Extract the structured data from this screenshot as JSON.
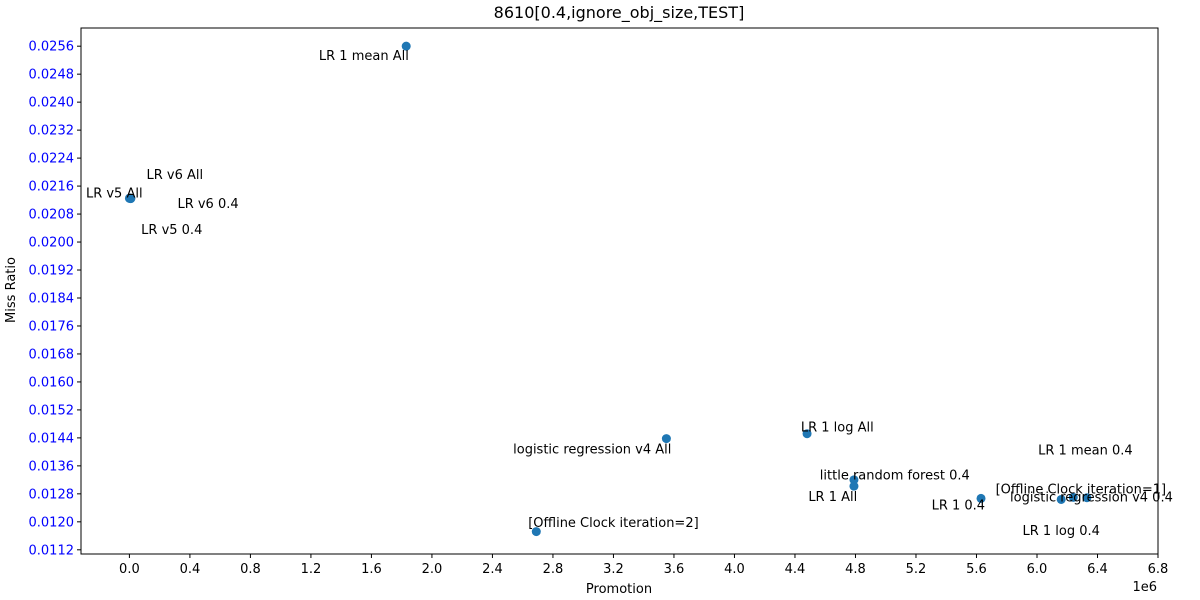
{
  "chart_data": {
    "type": "scatter",
    "title": "8610[0.4,ignore_obj_size,TEST]",
    "xlabel": "Promotion",
    "ylabel": "Miss Ratio",
    "x_offset_label": "1e6",
    "xlim": [
      -0.32,
      6.8
    ],
    "ylim": [
      0.01108,
      0.02612
    ],
    "x_tick_values": [
      0.0,
      0.4,
      0.8,
      1.2,
      1.6,
      2.0,
      2.4,
      2.8,
      3.2,
      3.6,
      4.0,
      4.4,
      4.8,
      5.2,
      5.6,
      6.0,
      6.4,
      6.8
    ],
    "x_tick_labels": [
      "0.0",
      "0.4",
      "0.8",
      "1.2",
      "1.6",
      "2.0",
      "2.4",
      "2.8",
      "3.2",
      "3.6",
      "4.0",
      "4.4",
      "4.8",
      "5.2",
      "5.6",
      "6.0",
      "6.4",
      "6.8"
    ],
    "y_tick_values": [
      0.0112,
      0.012,
      0.0128,
      0.0136,
      0.0144,
      0.0152,
      0.016,
      0.0168,
      0.0176,
      0.0184,
      0.0192,
      0.02,
      0.0208,
      0.0216,
      0.0224,
      0.0232,
      0.024,
      0.0248,
      0.0256
    ],
    "y_tick_labels": [
      "0.0112",
      "0.0120",
      "0.0128",
      "0.0136",
      "0.0144",
      "0.0152",
      "0.0160",
      "0.0168",
      "0.0176",
      "0.0184",
      "0.0192",
      "0.0200",
      "0.0208",
      "0.0216",
      "0.0224",
      "0.0232",
      "0.0240",
      "0.0248",
      "0.0256"
    ],
    "grid": false,
    "colors": {
      "marker": "#1f77b4",
      "y_tick_text": "#0000ff",
      "text": "#000000"
    },
    "points": [
      {
        "x": 1.83,
        "y": 0.0256
      },
      {
        "x": 0.0,
        "y": 0.02125
      },
      {
        "x": 0.005,
        "y": 0.02126
      },
      {
        "x": 0.008,
        "y": 0.02124
      },
      {
        "x": 0.01,
        "y": 0.02125
      },
      {
        "x": 3.55,
        "y": 0.01438
      },
      {
        "x": 4.48,
        "y": 0.01452
      },
      {
        "x": 4.79,
        "y": 0.0132
      },
      {
        "x": 4.79,
        "y": 0.01302
      },
      {
        "x": 5.63,
        "y": 0.01267
      },
      {
        "x": 6.16,
        "y": 0.01264
      },
      {
        "x": 6.24,
        "y": 0.0127
      },
      {
        "x": 6.33,
        "y": 0.01269
      },
      {
        "x": 2.69,
        "y": 0.01172
      }
    ],
    "annotations": [
      {
        "text": "LR 1 mean All",
        "x": 1.55,
        "y": 0.02535
      },
      {
        "text": "LR v6 All",
        "x": 0.3,
        "y": 0.02195
      },
      {
        "text": "LR v5 All",
        "x": -0.1,
        "y": 0.02141
      },
      {
        "text": "LR v6 0.4",
        "x": 0.52,
        "y": 0.02112
      },
      {
        "text": "LR v5 0.4",
        "x": 0.28,
        "y": 0.02037
      },
      {
        "text": "logistic regression v4 All",
        "x": 3.06,
        "y": 0.0141
      },
      {
        "text": "LR 1 log All",
        "x": 4.68,
        "y": 0.01473
      },
      {
        "text": "LR 1 mean 0.4",
        "x": 6.32,
        "y": 0.01407
      },
      {
        "text": "little random forest 0.4",
        "x": 5.06,
        "y": 0.01335
      },
      {
        "text": "[Offline Clock iteration=1]",
        "x": 6.29,
        "y": 0.01295
      },
      {
        "text": "LR 1 All",
        "x": 4.65,
        "y": 0.01274
      },
      {
        "text": "logistic regression v4 0.4",
        "x": 6.36,
        "y": 0.01272
      },
      {
        "text": "LR 1 0.4",
        "x": 5.48,
        "y": 0.01249
      },
      {
        "text": "LR 1 log 0.4",
        "x": 6.16,
        "y": 0.01177
      },
      {
        "text": "[Offline Clock iteration=2]",
        "x": 3.2,
        "y": 0.012
      }
    ]
  }
}
